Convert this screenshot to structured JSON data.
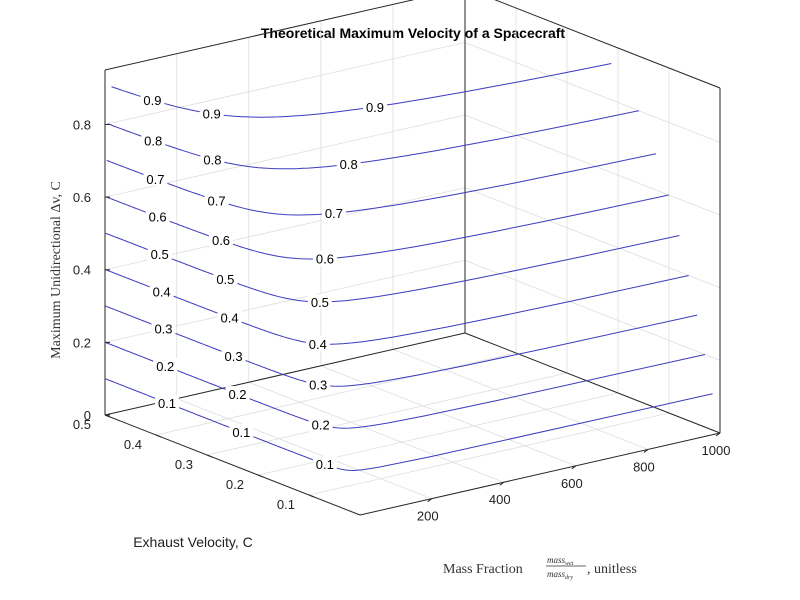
{
  "chart_data": {
    "type": "contour3d",
    "title": "Theoretical Maximum Velocity of a Spacecraft",
    "zlabel": "Maximum Unidirectional Δv, C",
    "ylabel": "Exhaust Velocity, C",
    "xlabel": {
      "prefix": "Mass Fraction ",
      "numerator": "mass",
      "numerator_sub": "wet",
      "denominator": "mass",
      "denominator_sub": "dry",
      "suffix": ", unitless"
    },
    "x_ticks": [
      "200",
      "400",
      "600",
      "800",
      "1000"
    ],
    "y_ticks": [
      "0.1",
      "0.2",
      "0.3",
      "0.4",
      "0.5"
    ],
    "z_ticks": [
      "0",
      "0.2",
      "0.4",
      "0.6",
      "0.8"
    ],
    "xlim": [
      1,
      1000
    ],
    "ylim": [
      0,
      0.5
    ],
    "zlim": [
      0,
      0.95
    ],
    "grid": true,
    "levels": [
      0.1,
      0.2,
      0.3,
      0.4,
      0.5,
      0.6,
      0.7,
      0.8,
      0.9
    ],
    "contour_labels": [
      "0.1",
      "0.2",
      "0.3",
      "0.4",
      "0.5",
      "0.6",
      "0.7",
      "0.8",
      "0.9"
    ],
    "line_color": "#3b3bbf"
  }
}
